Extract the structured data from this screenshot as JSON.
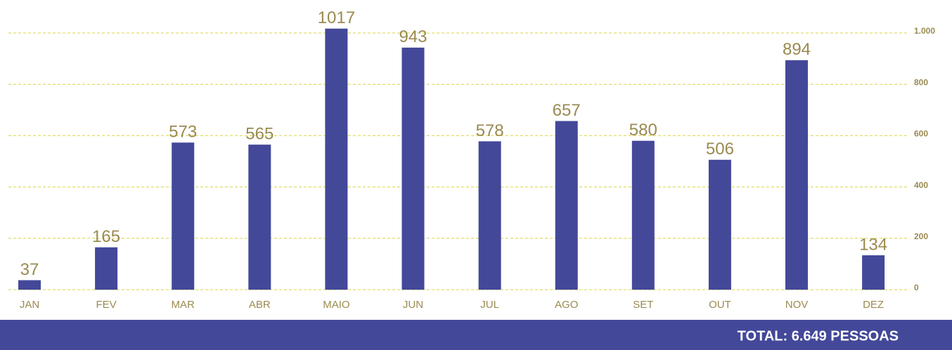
{
  "chart_data": {
    "type": "bar",
    "categories": [
      "JAN",
      "FEV",
      "MAR",
      "ABR",
      "MAIO",
      "JUN",
      "JUL",
      "AGO",
      "SET",
      "OUT",
      "NOV",
      "DEZ"
    ],
    "values": [
      37,
      165,
      573,
      565,
      1017,
      943,
      578,
      657,
      580,
      506,
      894,
      134
    ],
    "color": "#434899",
    "ylim": [
      0,
      1000
    ],
    "yticks": [
      0,
      200,
      400,
      600,
      800,
      {
        "value": 1000,
        "label": "1.000"
      }
    ],
    "grid": true,
    "footer": "TOTAL: 6.649 PESSOAS"
  }
}
